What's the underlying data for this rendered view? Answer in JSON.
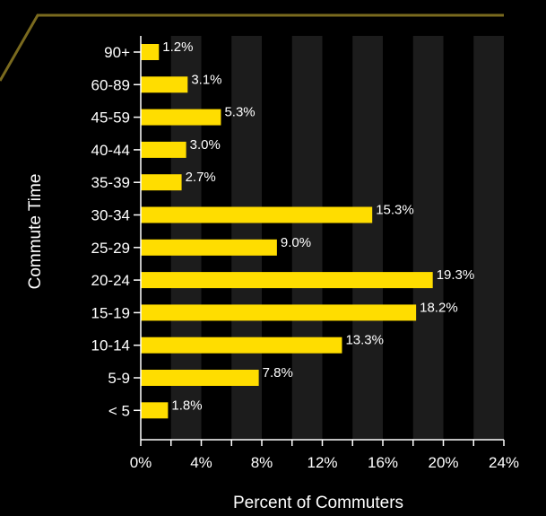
{
  "chart_data": {
    "type": "bar",
    "orientation": "horizontal",
    "categories": [
      "< 5",
      "5-9",
      "10-14",
      "15-19",
      "20-24",
      "25-29",
      "30-34",
      "35-39",
      "40-44",
      "45-59",
      "60-89",
      "90+"
    ],
    "values": [
      1.8,
      7.8,
      13.3,
      18.2,
      19.3,
      9.0,
      15.3,
      2.7,
      3.0,
      5.3,
      3.1,
      1.2
    ],
    "data_labels": [
      "1.8%",
      "7.8%",
      "13.3%",
      "18.2%",
      "19.3%",
      "9.0%",
      "15.3%",
      "2.7%",
      "3.0%",
      "5.3%",
      "3.1%",
      "1.2%"
    ],
    "title": "",
    "xlabel": "Percent of Commuters",
    "ylabel": "Commute Time",
    "xlim": [
      0,
      24
    ],
    "x_ticks": [
      0,
      4,
      8,
      12,
      16,
      20,
      24
    ],
    "x_tick_labels": [
      "0%",
      "4%",
      "8%",
      "12%",
      "16%",
      "20%",
      "24%"
    ],
    "grid": "alternating vertical bands",
    "legend": "none"
  },
  "colors": {
    "background": "#000000",
    "bar": "#ffdd00",
    "band": "#1c1c1c",
    "axis": "#ffffff",
    "accent_line": "#7a6a1e",
    "text": "#ffffff"
  }
}
